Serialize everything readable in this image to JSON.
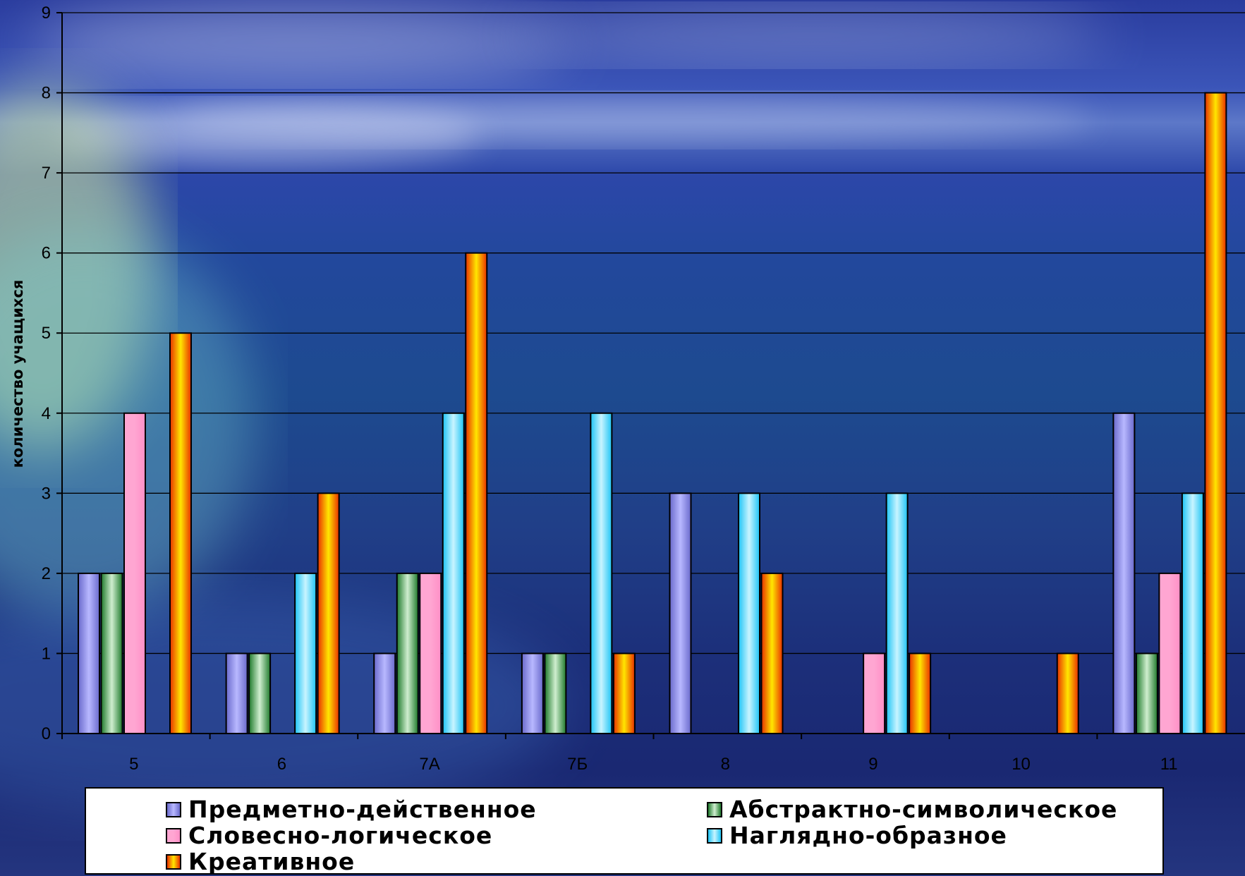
{
  "chart_data": {
    "type": "bar",
    "ylabel": "количество учащихся",
    "xlabel": "",
    "ylim": [
      0,
      9
    ],
    "yticks": [
      0,
      1,
      2,
      3,
      4,
      5,
      6,
      7,
      8,
      9
    ],
    "grid": true,
    "legend_position": "bottom",
    "categories": [
      "5",
      "6",
      "7А",
      "7Б",
      "8",
      "9",
      "10",
      "11"
    ],
    "series": [
      {
        "name": "Предметно-действенное",
        "color": "#9999ff",
        "values": [
          2,
          1,
          1,
          1,
          3,
          0,
          0,
          4
        ]
      },
      {
        "name": "Абстрактно-символическое",
        "color": "#2e8b3a",
        "values": [
          2,
          1,
          2,
          1,
          0,
          0,
          0,
          1
        ]
      },
      {
        "name": "Словесно-логическое",
        "color": "#ff99cc",
        "values": [
          4,
          0,
          2,
          0,
          0,
          1,
          0,
          2
        ]
      },
      {
        "name": "Наглядно-образное",
        "color": "#33ccff",
        "values": [
          0,
          2,
          4,
          4,
          3,
          3,
          0,
          3
        ]
      },
      {
        "name": "Креативное",
        "color": "#ff3300",
        "values": [
          5,
          3,
          6,
          1,
          2,
          1,
          1,
          8
        ]
      }
    ]
  }
}
